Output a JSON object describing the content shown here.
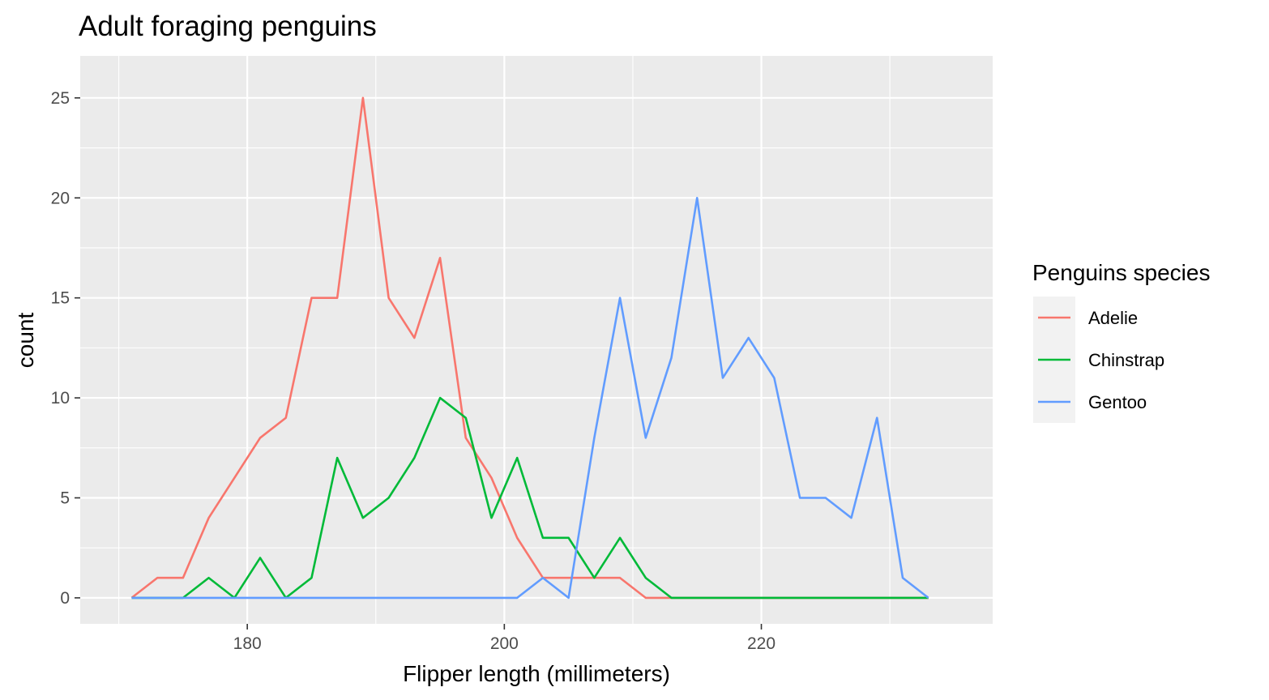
{
  "chart_data": {
    "type": "line",
    "title": "Adult foraging penguins",
    "xlabel": "Flipper length (millimeters)",
    "ylabel": "count",
    "xlim": [
      167,
      238
    ],
    "ylim": [
      -1.3,
      27.1
    ],
    "x_ticks": [
      180,
      200,
      220
    ],
    "x_tick_labels": [
      "180",
      "200",
      "220"
    ],
    "y_ticks": [
      0,
      5,
      10,
      15,
      20,
      25
    ],
    "y_tick_labels": [
      "0",
      "5",
      "10",
      "15",
      "20",
      "25"
    ],
    "grid": true,
    "legend": {
      "title": "Penguins species",
      "placement": "right"
    },
    "x": [
      171.0,
      173.0,
      175.0,
      177.0,
      179.0,
      181.0,
      183.0,
      185.0,
      187.0,
      189.0,
      191.0,
      193.0,
      195.0,
      197.0,
      199.0,
      201.0,
      203.0,
      205.0,
      207.0,
      209.0,
      211.0,
      213.0,
      215.0,
      217.0,
      219.0,
      221.0,
      223.0,
      225.0,
      227.0,
      229.0,
      231.0,
      233.0
    ],
    "series": [
      {
        "name": "Adelie",
        "color": "#F8766D",
        "values": [
          0,
          1,
          1,
          4,
          6,
          8,
          9,
          15,
          15,
          25,
          15,
          13,
          17,
          8,
          6,
          3,
          1,
          1,
          1,
          1,
          0,
          0,
          0,
          0,
          0,
          0,
          0,
          0,
          0,
          0,
          0,
          0
        ]
      },
      {
        "name": "Chinstrap",
        "color": "#00BA38",
        "values": [
          0,
          0,
          0,
          1,
          0,
          2,
          0,
          1,
          7,
          4,
          5,
          7,
          10,
          9,
          4,
          7,
          3,
          3,
          1,
          3,
          1,
          0,
          0,
          0,
          0,
          0,
          0,
          0,
          0,
          0,
          0,
          0
        ]
      },
      {
        "name": "Gentoo",
        "color": "#619CFF",
        "values": [
          0,
          0,
          0,
          0,
          0,
          0,
          0,
          0,
          0,
          0,
          0,
          0,
          0,
          0,
          0,
          0,
          1,
          0,
          8,
          15,
          8,
          12,
          20,
          11,
          13,
          11,
          5,
          5,
          4,
          9,
          1,
          0
        ]
      }
    ]
  }
}
